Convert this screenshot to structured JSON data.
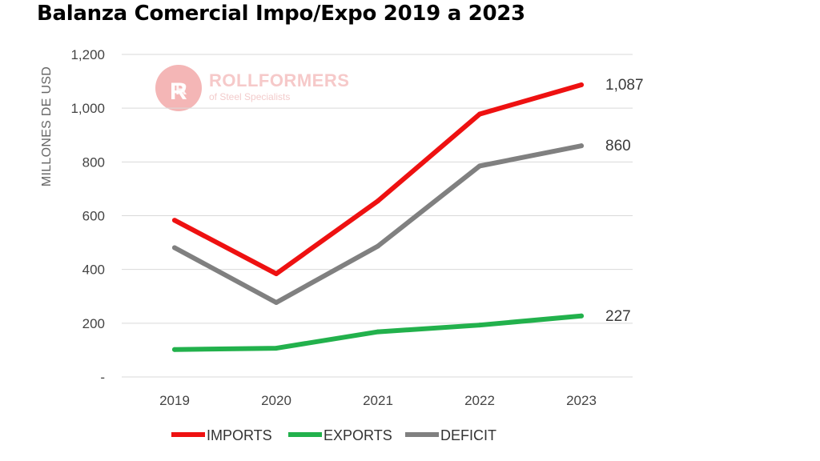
{
  "header": {
    "title": "Balanza Comercial Impo/Expo 2019 a 2023"
  },
  "watermark": {
    "name": "ROLLFORMERS",
    "tagline": "of Steel Specialists",
    "color": "#f4b6b6"
  },
  "chart_data": {
    "type": "line",
    "title": "",
    "xlabel": "",
    "ylabel": "MILLONES DE USD",
    "x": [
      2019,
      2020,
      2021,
      2022,
      2023
    ],
    "ylim": [
      0,
      1200
    ],
    "yticks": [
      0,
      200,
      400,
      600,
      800,
      1000,
      1200
    ],
    "ytick_labels": [
      "-",
      "200",
      "400",
      "600",
      "800",
      "1,000",
      "1,200"
    ],
    "grid": true,
    "legend_position": "bottom",
    "series": [
      {
        "name": "IMPORTS",
        "color": "#ee1111",
        "values": [
          583,
          384,
          655,
          978,
          1087
        ],
        "end_label": "1,087"
      },
      {
        "name": "EXPORTS",
        "color": "#22b14c",
        "values": [
          102,
          107,
          168,
          193,
          227
        ],
        "end_label": "227"
      },
      {
        "name": "DEFICIT",
        "color": "#808080",
        "values": [
          481,
          277,
          487,
          785,
          860
        ],
        "end_label": "860"
      }
    ]
  }
}
